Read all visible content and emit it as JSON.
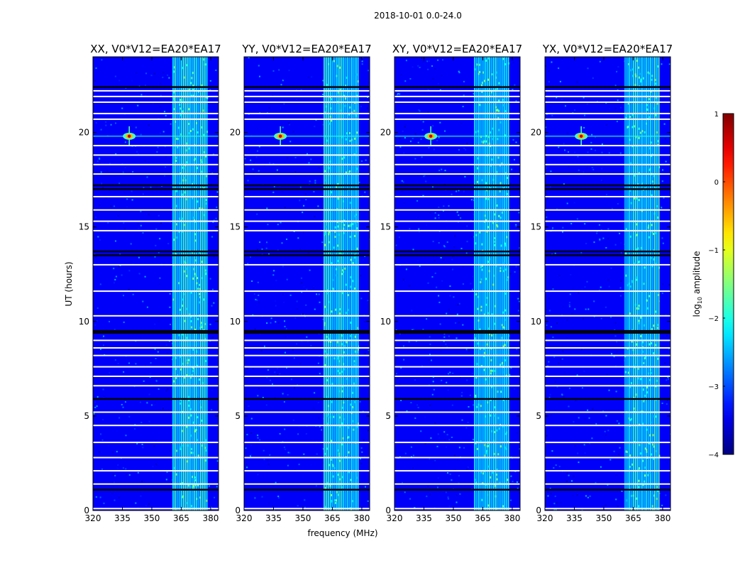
{
  "chart_data": {
    "type": "heatmap",
    "suptitle": "2018-10-01 0.0-24.0",
    "xlabel": "frequency (MHz)",
    "ylabel": "UT (hours)",
    "xlim": [
      320,
      384
    ],
    "ylim": [
      0,
      24
    ],
    "xticks": [
      320,
      335,
      350,
      365,
      380
    ],
    "yticks": [
      0,
      5,
      10,
      15,
      20
    ],
    "colormap": "jet",
    "colorbar": {
      "label_prefix": "log",
      "label_sub": "10",
      "label_suffix": " amplitude",
      "range": [
        -4,
        1
      ],
      "ticks": [
        1,
        0,
        -1,
        -2,
        -3,
        -4
      ],
      "tick_labels": [
        "1",
        "0",
        "−1",
        "−2",
        "−3",
        "−4"
      ]
    },
    "background_log_amplitude": -3.4,
    "rfi_band_mhz": [
      360.5,
      378
    ],
    "rfi_log_amplitude": -2.2,
    "source": {
      "freq_mhz": 338.5,
      "ut_hours": 19.8
    },
    "blank_rows_ut": [
      22.2,
      21.9,
      21.6,
      21.0,
      20.7,
      19.3,
      18.8,
      18.3,
      17.8,
      16.6,
      15.9,
      15.3,
      14.8,
      13.0,
      11.6,
      10.3,
      9.0,
      8.6,
      8.2,
      7.6,
      7.1,
      6.6,
      5.2,
      4.5,
      3.6,
      2.8,
      2.1,
      1.4,
      0.1
    ],
    "black_rows_ut": [
      22.4,
      17.2,
      17.0,
      13.7,
      13.5,
      9.5,
      9.4,
      5.9,
      1.1
    ],
    "panels": [
      {
        "title": "XX, V0*V12=EA20*EA17",
        "polarization": "XX"
      },
      {
        "title": "YY, V0*V12=EA20*EA17",
        "polarization": "YY"
      },
      {
        "title": "XY, V0*V12=EA20*EA17",
        "polarization": "XY"
      },
      {
        "title": "YX, V0*V12=EA20*EA17",
        "polarization": "YX"
      }
    ]
  }
}
